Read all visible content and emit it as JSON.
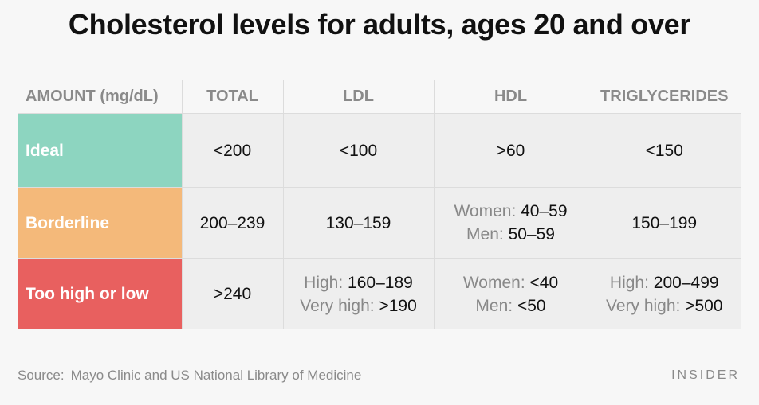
{
  "title": "Cholesterol levels for adults, ages 20 and over",
  "chart_data": {
    "type": "table",
    "columns": [
      "AMOUNT (mg/dL)",
      "TOTAL",
      "LDL",
      "HDL",
      "TRIGLYCERIDES"
    ],
    "rows": [
      {
        "label": "Ideal",
        "color": "#8dd5c0",
        "cells": [
          [
            {
              "label": "",
              "value": "<200"
            }
          ],
          [
            {
              "label": "",
              "value": "<100"
            }
          ],
          [
            {
              "label": "",
              "value": ">60"
            }
          ],
          [
            {
              "label": "",
              "value": "<150"
            }
          ]
        ]
      },
      {
        "label": "Borderline",
        "color": "#f4b97a",
        "cells": [
          [
            {
              "label": "",
              "value": "200–239"
            }
          ],
          [
            {
              "label": "",
              "value": "130–159"
            }
          ],
          [
            {
              "label": "Women:",
              "value": "40–59"
            },
            {
              "label": "Men:",
              "value": "50–59"
            }
          ],
          [
            {
              "label": "",
              "value": "150–199"
            }
          ]
        ]
      },
      {
        "label": "Too high or low",
        "color": "#e8605f",
        "cells": [
          [
            {
              "label": "",
              "value": ">240"
            }
          ],
          [
            {
              "label": "High:",
              "value": "160–189"
            },
            {
              "label": "Very high:",
              "value": ">190"
            }
          ],
          [
            {
              "label": "Women:",
              "value": "<40"
            },
            {
              "label": "Men:",
              "value": "<50"
            }
          ],
          [
            {
              "label": "High:",
              "value": "200–499"
            },
            {
              "label": "Very high:",
              "value": ">500"
            }
          ]
        ]
      }
    ]
  },
  "source": {
    "label": "Source:",
    "text": "Mayo Clinic and US National Library of Medicine"
  },
  "brand": "INSIDER"
}
